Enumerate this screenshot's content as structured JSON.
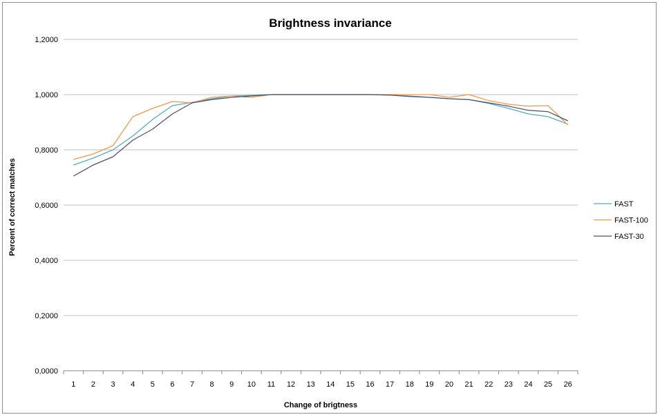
{
  "chart_data": {
    "type": "line",
    "title": "Brightness invariance",
    "xlabel": "Change of brigtness",
    "ylabel": "Percent of correct matches",
    "x": [
      "1",
      "2",
      "3",
      "4",
      "5",
      "6",
      "7",
      "8",
      "9",
      "10",
      "11",
      "12",
      "13",
      "14",
      "15",
      "16",
      "17",
      "18",
      "19",
      "20",
      "21",
      "22",
      "23",
      "24",
      "25",
      "26"
    ],
    "ylim": [
      0,
      1.2
    ],
    "yticks": [
      "0,0000",
      "0,2000",
      "0,4000",
      "0,6000",
      "0,8000",
      "1,0000",
      "1,2000"
    ],
    "ytick_values": [
      0,
      0.2,
      0.4,
      0.6,
      0.8,
      1.0,
      1.2
    ],
    "grid": true,
    "legend_position": "right",
    "series": [
      {
        "name": "FAST",
        "color": "#4bacc6",
        "values": [
          0.745,
          0.77,
          0.8,
          0.85,
          0.91,
          0.96,
          0.972,
          0.985,
          0.995,
          0.997,
          1.0,
          1.0,
          1.0,
          1.0,
          1.0,
          1.0,
          0.998,
          0.995,
          0.99,
          0.985,
          0.982,
          0.968,
          0.95,
          0.93,
          0.92,
          0.893
        ]
      },
      {
        "name": "FAST-100",
        "color": "#f79646",
        "values": [
          0.765,
          0.785,
          0.815,
          0.92,
          0.95,
          0.975,
          0.97,
          0.99,
          0.995,
          0.99,
          1.0,
          1.0,
          1.0,
          1.0,
          1.0,
          1.0,
          1.0,
          1.0,
          1.0,
          0.99,
          1.0,
          0.978,
          0.965,
          0.958,
          0.96,
          0.89
        ]
      },
      {
        "name": "FAST-30",
        "color": "#4f4f68",
        "values": [
          0.705,
          0.745,
          0.775,
          0.835,
          0.875,
          0.93,
          0.97,
          0.982,
          0.99,
          0.995,
          1.0,
          1.0,
          1.0,
          1.0,
          1.0,
          1.0,
          0.998,
          0.993,
          0.99,
          0.985,
          0.982,
          0.97,
          0.958,
          0.943,
          0.938,
          0.905
        ]
      }
    ]
  }
}
